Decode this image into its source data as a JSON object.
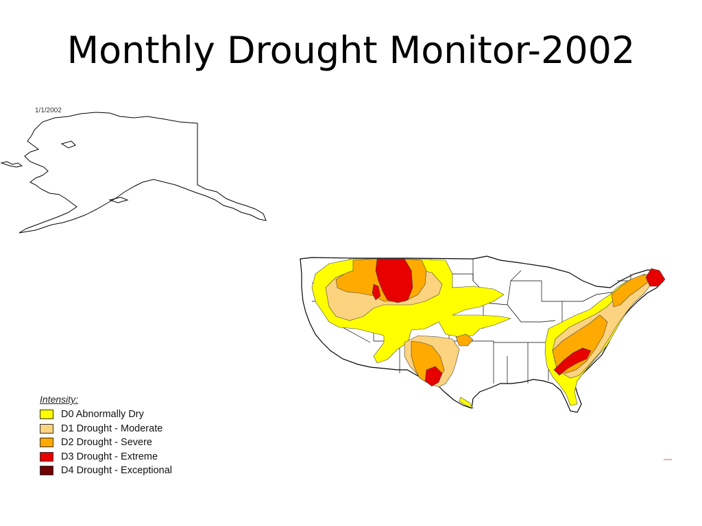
{
  "title": "Monthly Drought Monitor-2002",
  "map": {
    "date": "1/1/2002"
  },
  "legend": {
    "title": "Intensity:",
    "items": [
      {
        "label": "D0 Abnormally Dry",
        "color": "#ffff00"
      },
      {
        "label": "D1 Drought - Moderate",
        "color": "#fcd37f"
      },
      {
        "label": "D2 Drought - Severe",
        "color": "#ffaa00"
      },
      {
        "label": "D3 Drought - Extreme",
        "color": "#e60000"
      },
      {
        "label": "D4 Drought - Exceptional",
        "color": "#730000"
      }
    ]
  }
}
